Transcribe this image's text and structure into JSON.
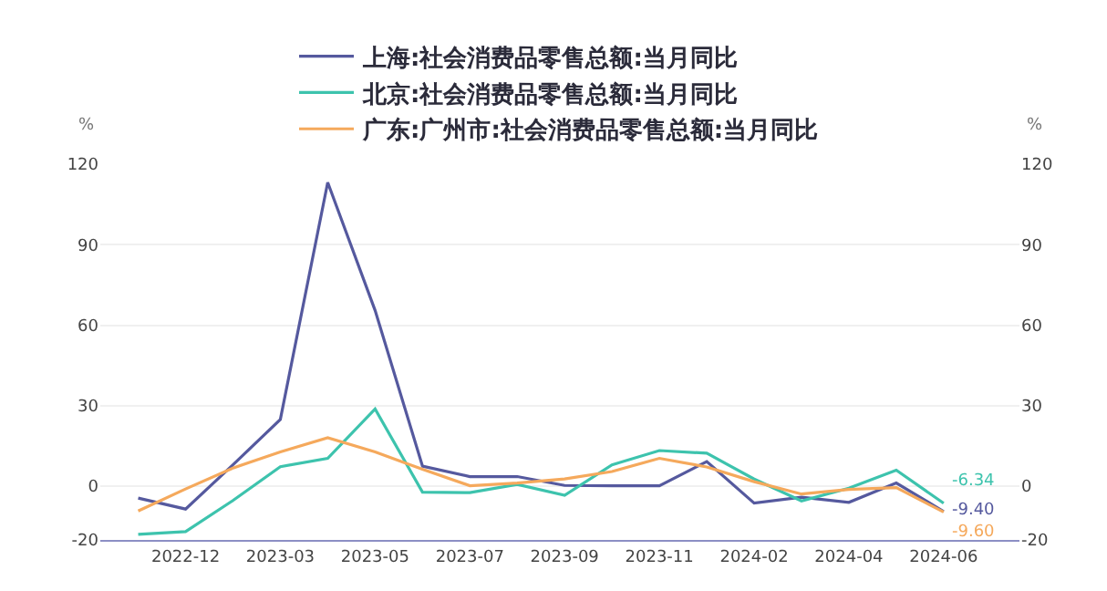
{
  "chart_data": {
    "type": "line",
    "categories": [
      null,
      "2022-12",
      null,
      "2023-03",
      null,
      "2023-05",
      null,
      "2023-07",
      null,
      "2023-09",
      null,
      "2023-11",
      null,
      "2024-02",
      null,
      "2024-04",
      null,
      "2024-06"
    ],
    "series": [
      {
        "name": "上海:社会消费品零售总额:当月同比",
        "color": "#55599e",
        "values": [
          -4.4,
          -8.5,
          8.0,
          24.9,
          113.2,
          65.5,
          7.5,
          3.6,
          3.6,
          0.3,
          0.2,
          0.2,
          9.2,
          -6.3,
          -4.1,
          -6.0,
          1.2,
          -9.4
        ],
        "value_labels": [
          null,
          null,
          null,
          null,
          null,
          null,
          null,
          null,
          null,
          null,
          null,
          null,
          null,
          null,
          null,
          null,
          null,
          "-9.40"
        ]
      },
      {
        "name": "北京:社会消费品零售总额:当月同比",
        "color": "#3dc3ad",
        "values": [
          -17.9,
          -16.9,
          -5.3,
          7.3,
          10.4,
          28.8,
          -2.2,
          -2.4,
          0.7,
          -3.4,
          8.0,
          13.3,
          12.3,
          2.7,
          -5.5,
          -0.7,
          6.0,
          -6.34
        ],
        "value_labels": [
          null,
          null,
          null,
          null,
          null,
          null,
          null,
          null,
          null,
          null,
          null,
          null,
          null,
          null,
          null,
          null,
          null,
          "-6.34"
        ]
      },
      {
        "name": "广东:广州市:社会消费品零售总额:当月同比",
        "color": "#f5a95c",
        "values": [
          -9.2,
          -1.0,
          6.8,
          12.8,
          18.1,
          12.8,
          6.3,
          0.2,
          1.2,
          2.7,
          5.5,
          10.4,
          7.2,
          1.7,
          -2.9,
          -1.2,
          -0.5,
          -9.6
        ],
        "value_labels": [
          null,
          null,
          null,
          null,
          null,
          null,
          null,
          null,
          null,
          null,
          null,
          null,
          null,
          null,
          null,
          null,
          null,
          "-9.60"
        ]
      }
    ],
    "ylabel": "%",
    "y2label": "%",
    "ylim": [
      -20,
      120
    ],
    "yticks": [
      -20,
      0,
      30,
      60,
      90,
      120
    ],
    "y2lim": [
      -20,
      120
    ],
    "y2ticks": [
      -20,
      0,
      30,
      60,
      90,
      120
    ],
    "grid": "y",
    "legend": "top",
    "marker": "none",
    "line_style": "solid"
  }
}
